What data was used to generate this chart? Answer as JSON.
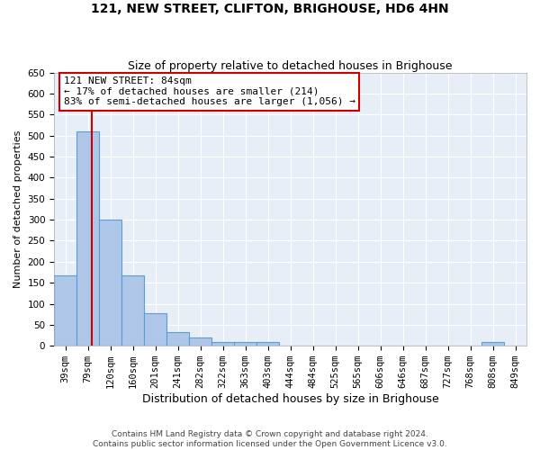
{
  "title": "121, NEW STREET, CLIFTON, BRIGHOUSE, HD6 4HN",
  "subtitle": "Size of property relative to detached houses in Brighouse",
  "xlabel": "Distribution of detached houses by size in Brighouse",
  "ylabel": "Number of detached properties",
  "bin_labels": [
    "39sqm",
    "79sqm",
    "120sqm",
    "160sqm",
    "201sqm",
    "241sqm",
    "282sqm",
    "322sqm",
    "363sqm",
    "403sqm",
    "444sqm",
    "484sqm",
    "525sqm",
    "565sqm",
    "606sqm",
    "646sqm",
    "687sqm",
    "727sqm",
    "768sqm",
    "808sqm",
    "849sqm"
  ],
  "bar_heights": [
    168,
    510,
    300,
    168,
    78,
    32,
    20,
    8,
    8,
    8,
    0,
    0,
    0,
    0,
    0,
    0,
    0,
    0,
    0,
    8,
    0
  ],
  "bar_color": "#aec6e8",
  "bar_edgecolor": "#5a9fd4",
  "vline_color": "#cc0000",
  "annotation_text": "121 NEW STREET: 84sqm\n← 17% of detached houses are smaller (214)\n83% of semi-detached houses are larger (1,056) →",
  "annotation_box_color": "#ffffff",
  "annotation_box_edgecolor": "#cc0000",
  "ylim": [
    0,
    650
  ],
  "yticks": [
    0,
    50,
    100,
    150,
    200,
    250,
    300,
    350,
    400,
    450,
    500,
    550,
    600,
    650
  ],
  "background_color": "#e8eef8",
  "grid_color": "#ffffff",
  "footer_text": "Contains HM Land Registry data © Crown copyright and database right 2024.\nContains public sector information licensed under the Open Government Licence v3.0.",
  "title_fontsize": 10,
  "subtitle_fontsize": 9,
  "annotation_fontsize": 8,
  "ylabel_fontsize": 8,
  "xlabel_fontsize": 9,
  "tick_fontsize": 7.5
}
